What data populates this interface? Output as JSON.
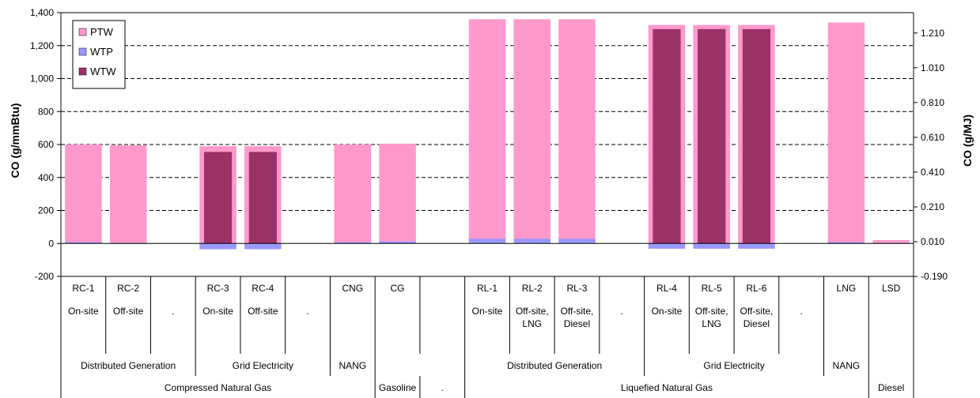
{
  "chart_data": {
    "type": "bar",
    "ylabel": "CO (g/mmBtu)",
    "ylabel_right": "CO (g/MJ)",
    "ylim": [
      -200,
      1400
    ],
    "y_ticks": [
      "-200",
      "0",
      "200",
      "400",
      "600",
      "800",
      "1,000",
      "1,200",
      "1,400"
    ],
    "y_tick_values": [
      -200,
      0,
      200,
      400,
      600,
      800,
      1000,
      1200,
      1400
    ],
    "y2_ticks": [
      "-0.190",
      "0.010",
      "0.210",
      "0.410",
      "0.610",
      "0.810",
      "1.010",
      "1.210"
    ],
    "y2_tick_values": [
      -0.19,
      0.01,
      0.21,
      0.41,
      0.61,
      0.81,
      1.01,
      1.21
    ],
    "grid": true,
    "legend_position": "top-left",
    "series": [
      {
        "name": "PTW",
        "color": "#ff99cc",
        "values": [
          600,
          595,
          null,
          590,
          590,
          null,
          600,
          605,
          null,
          1360,
          1360,
          1360,
          null,
          1325,
          1325,
          1325,
          null,
          1340,
          20
        ]
      },
      {
        "name": "WTP",
        "color": "#9999ff",
        "values": [
          8,
          3,
          null,
          -35,
          -35,
          null,
          8,
          12,
          null,
          28,
          28,
          28,
          null,
          -32,
          -32,
          -32,
          null,
          8,
          3
        ]
      },
      {
        "name": "WTW",
        "color": "#993366",
        "values": [
          null,
          null,
          null,
          555,
          555,
          null,
          null,
          null,
          null,
          null,
          null,
          null,
          null,
          1300,
          1300,
          1300,
          null,
          null,
          null
        ]
      }
    ],
    "categories": [
      "RC-1",
      "RC-2",
      "",
      "RC-3",
      "RC-4",
      "",
      "CNG",
      "CG",
      "",
      "RL-1",
      "RL-2",
      "RL-3",
      "",
      "RL-4",
      "RL-5",
      "RL-6",
      "",
      "LNG",
      "LSD"
    ],
    "label_rows": [
      {
        "cells": [
          {
            "span": 1,
            "text": "RC-1"
          },
          {
            "span": 1,
            "text": "RC-2"
          },
          {
            "span": 1,
            "text": ""
          },
          {
            "span": 1,
            "text": "RC-3"
          },
          {
            "span": 1,
            "text": "RC-4"
          },
          {
            "span": 1,
            "text": ""
          },
          {
            "span": 1,
            "text": "CNG"
          },
          {
            "span": 1,
            "text": "CG"
          },
          {
            "span": 1,
            "text": ""
          },
          {
            "span": 1,
            "text": "RL-1"
          },
          {
            "span": 1,
            "text": "RL-2"
          },
          {
            "span": 1,
            "text": "RL-3"
          },
          {
            "span": 1,
            "text": ""
          },
          {
            "span": 1,
            "text": "RL-4"
          },
          {
            "span": 1,
            "text": "RL-5"
          },
          {
            "span": 1,
            "text": "RL-6"
          },
          {
            "span": 1,
            "text": ""
          },
          {
            "span": 1,
            "text": "LNG"
          },
          {
            "span": 1,
            "text": "LSD"
          }
        ]
      },
      {
        "cells": [
          {
            "span": 1,
            "text": "On-site"
          },
          {
            "span": 1,
            "text": "Off-site"
          },
          {
            "span": 1,
            "text": "."
          },
          {
            "span": 1,
            "text": "On-site"
          },
          {
            "span": 1,
            "text": "Off-site"
          },
          {
            "span": 1,
            "text": "."
          },
          {
            "span": 1,
            "text": ""
          },
          {
            "span": 1,
            "text": ""
          },
          {
            "span": 1,
            "text": ""
          },
          {
            "span": 1,
            "text": "On-site"
          },
          {
            "span": 1,
            "text": "Off-site, LNG"
          },
          {
            "span": 1,
            "text": "Off-site, Diesel"
          },
          {
            "span": 1,
            "text": "."
          },
          {
            "span": 1,
            "text": "On-site"
          },
          {
            "span": 1,
            "text": "Off-site, LNG"
          },
          {
            "span": 1,
            "text": "Off-site, Diesel"
          },
          {
            "span": 1,
            "text": "."
          },
          {
            "span": 1,
            "text": ""
          },
          {
            "span": 1,
            "text": ""
          }
        ]
      },
      {
        "cells": [
          {
            "span": 3,
            "text": "Distributed Generation"
          },
          {
            "span": 3,
            "text": "Grid Electricity"
          },
          {
            "span": 1,
            "text": "NANG"
          },
          {
            "span": 2,
            "text": ""
          },
          {
            "span": 4,
            "text": "Distributed Generation"
          },
          {
            "span": 4,
            "text": "Grid Electricity"
          },
          {
            "span": 1,
            "text": "NANG"
          },
          {
            "span": 1,
            "text": ""
          }
        ]
      },
      {
        "cells": [
          {
            "span": 7,
            "text": "Compressed Natural Gas"
          },
          {
            "span": 1,
            "text": "Gasoline"
          },
          {
            "span": 1,
            "text": "."
          },
          {
            "span": 9,
            "text": "Liquefied Natural Gas"
          },
          {
            "span": 1,
            "text": "Diesel"
          }
        ]
      }
    ]
  }
}
